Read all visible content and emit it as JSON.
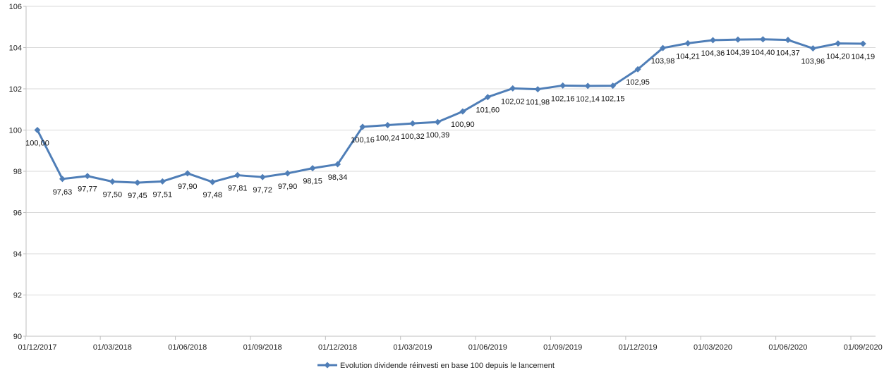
{
  "chart_data": {
    "type": "line",
    "x": [
      "01/12/2017",
      "01/01/2018",
      "01/02/2018",
      "01/03/2018",
      "01/04/2018",
      "01/05/2018",
      "01/06/2018",
      "01/07/2018",
      "01/08/2018",
      "01/09/2018",
      "01/10/2018",
      "01/11/2018",
      "01/12/2018",
      "01/01/2019",
      "01/02/2019",
      "01/03/2019",
      "01/04/2019",
      "01/05/2019",
      "01/06/2019",
      "01/07/2019",
      "01/08/2019",
      "01/09/2019",
      "01/10/2019",
      "01/11/2019",
      "01/12/2019",
      "01/01/2020",
      "01/02/2020",
      "01/03/2020",
      "01/04/2020",
      "01/05/2020",
      "01/06/2020",
      "01/07/2020",
      "01/08/2020",
      "01/09/2020"
    ],
    "series": [
      {
        "name": "Evolution dividende réinvesti en base 100 depuis le lancement",
        "values": [
          100.0,
          97.63,
          97.77,
          97.5,
          97.45,
          97.51,
          97.9,
          97.48,
          97.81,
          97.72,
          97.9,
          98.15,
          98.34,
          100.16,
          100.24,
          100.32,
          100.39,
          100.9,
          101.6,
          102.02,
          101.98,
          102.16,
          102.14,
          102.15,
          102.95,
          103.98,
          104.21,
          104.36,
          104.39,
          104.4,
          104.37,
          103.96,
          104.2,
          104.19
        ],
        "labels": [
          "100,00",
          "97,63",
          "97,77",
          "97,50",
          "97,45",
          "97,51",
          "97,90",
          "97,48",
          "97,81",
          "97,72",
          "97,90",
          "98,15",
          "98,34",
          "100,16",
          "100,24",
          "100,32",
          "100,39",
          "100,90",
          "101,60",
          "102,02",
          "101,98",
          "102,16",
          "102,14",
          "102,15",
          "102,95",
          "103,98",
          "104,21",
          "104,36",
          "104,39",
          "104,40",
          "104,37",
          "103,96",
          "104,20",
          "104,19"
        ],
        "color": "#4f7eb7"
      }
    ],
    "x_tick_labels": [
      "01/12/2017",
      "01/03/2018",
      "01/06/2018",
      "01/09/2018",
      "01/12/2018",
      "01/03/2019",
      "01/06/2019",
      "01/09/2019",
      "01/12/2019",
      "01/03/2020",
      "01/06/2020",
      "01/09/2020"
    ],
    "y_ticks": [
      "90",
      "92",
      "94",
      "96",
      "98",
      "100",
      "102",
      "104",
      "106"
    ],
    "ylim": [
      90,
      106
    ],
    "grid": "horizontal",
    "legend_position": "bottom-center",
    "title": "",
    "xlabel": "",
    "ylabel": ""
  }
}
